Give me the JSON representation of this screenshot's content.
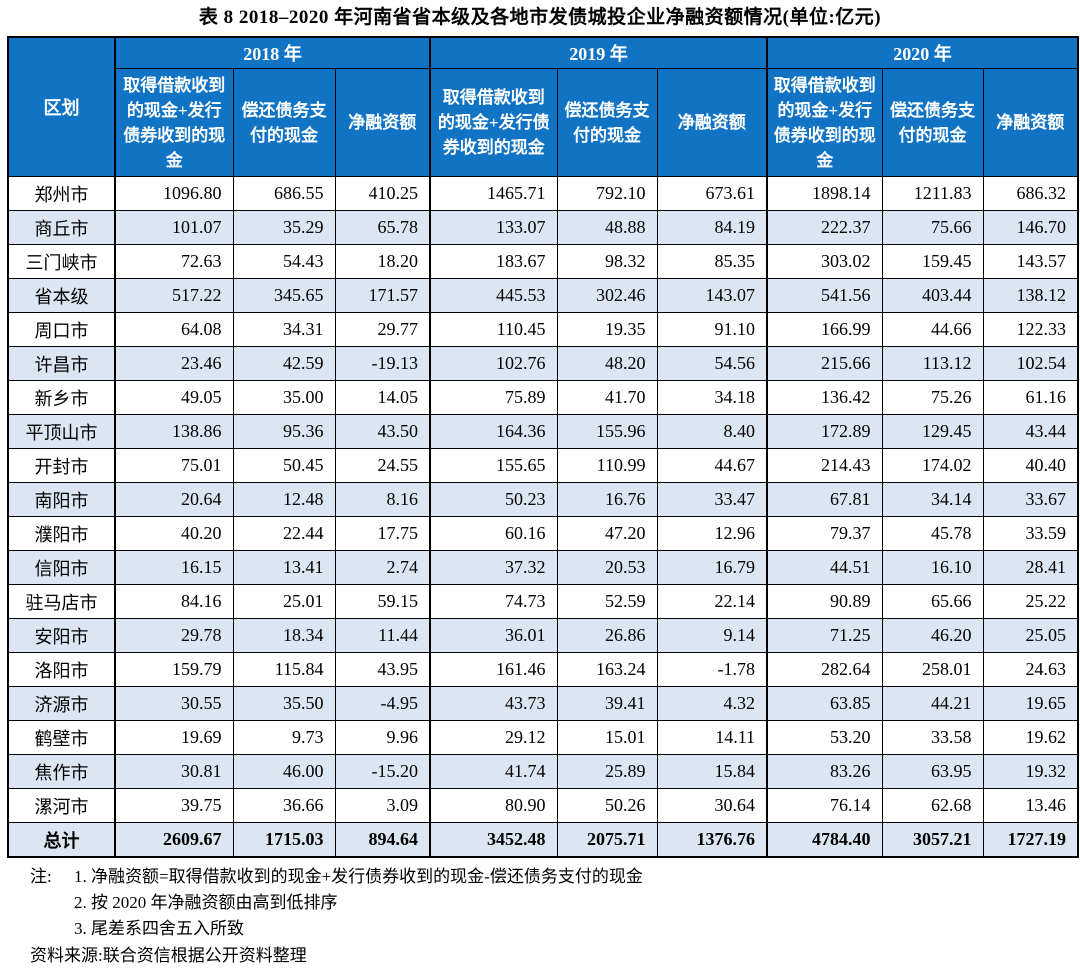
{
  "page": {
    "title": "表 8  2018–2020 年河南省省本级及各地市发债城投企业净融资额情况(单位:亿元)"
  },
  "colors": {
    "header_blue": "#1173C4",
    "row_alt_blue": "#DCE6F2",
    "border": "#000000",
    "header_text": "#FFFFFF"
  },
  "table": {
    "region_header": "区划",
    "year_groups": [
      {
        "year": "2018 年",
        "columns": [
          "取得借款收到的现金+发行债券收到的现金",
          "偿还债务支付的现金",
          "净融资额"
        ]
      },
      {
        "year": "2019 年",
        "columns": [
          "取得借款收到的现金+发行债券收到的现金",
          "偿还债务支付的现金",
          "净融资额"
        ]
      },
      {
        "year": "2020 年",
        "columns": [
          "取得借款收到的现金+发行债券收到的现金",
          "偿还债务支付的现金",
          "净融资额"
        ]
      }
    ],
    "rows": [
      {
        "region": "郑州市",
        "values": [
          "1096.80",
          "686.55",
          "410.25",
          "1465.71",
          "792.10",
          "673.61",
          "1898.14",
          "1211.83",
          "686.32"
        ]
      },
      {
        "region": "商丘市",
        "values": [
          "101.07",
          "35.29",
          "65.78",
          "133.07",
          "48.88",
          "84.19",
          "222.37",
          "75.66",
          "146.70"
        ]
      },
      {
        "region": "三门峡市",
        "values": [
          "72.63",
          "54.43",
          "18.20",
          "183.67",
          "98.32",
          "85.35",
          "303.02",
          "159.45",
          "143.57"
        ]
      },
      {
        "region": "省本级",
        "values": [
          "517.22",
          "345.65",
          "171.57",
          "445.53",
          "302.46",
          "143.07",
          "541.56",
          "403.44",
          "138.12"
        ]
      },
      {
        "region": "周口市",
        "values": [
          "64.08",
          "34.31",
          "29.77",
          "110.45",
          "19.35",
          "91.10",
          "166.99",
          "44.66",
          "122.33"
        ]
      },
      {
        "region": "许昌市",
        "values": [
          "23.46",
          "42.59",
          "-19.13",
          "102.76",
          "48.20",
          "54.56",
          "215.66",
          "113.12",
          "102.54"
        ]
      },
      {
        "region": "新乡市",
        "values": [
          "49.05",
          "35.00",
          "14.05",
          "75.89",
          "41.70",
          "34.18",
          "136.42",
          "75.26",
          "61.16"
        ]
      },
      {
        "region": "平顶山市",
        "values": [
          "138.86",
          "95.36",
          "43.50",
          "164.36",
          "155.96",
          "8.40",
          "172.89",
          "129.45",
          "43.44"
        ]
      },
      {
        "region": "开封市",
        "values": [
          "75.01",
          "50.45",
          "24.55",
          "155.65",
          "110.99",
          "44.67",
          "214.43",
          "174.02",
          "40.40"
        ]
      },
      {
        "region": "南阳市",
        "values": [
          "20.64",
          "12.48",
          "8.16",
          "50.23",
          "16.76",
          "33.47",
          "67.81",
          "34.14",
          "33.67"
        ]
      },
      {
        "region": "濮阳市",
        "values": [
          "40.20",
          "22.44",
          "17.75",
          "60.16",
          "47.20",
          "12.96",
          "79.37",
          "45.78",
          "33.59"
        ]
      },
      {
        "region": "信阳市",
        "values": [
          "16.15",
          "13.41",
          "2.74",
          "37.32",
          "20.53",
          "16.79",
          "44.51",
          "16.10",
          "28.41"
        ]
      },
      {
        "region": "驻马店市",
        "values": [
          "84.16",
          "25.01",
          "59.15",
          "74.73",
          "52.59",
          "22.14",
          "90.89",
          "65.66",
          "25.22"
        ]
      },
      {
        "region": "安阳市",
        "values": [
          "29.78",
          "18.34",
          "11.44",
          "36.01",
          "26.86",
          "9.14",
          "71.25",
          "46.20",
          "25.05"
        ]
      },
      {
        "region": "洛阳市",
        "values": [
          "159.79",
          "115.84",
          "43.95",
          "161.46",
          "163.24",
          "-1.78",
          "282.64",
          "258.01",
          "24.63"
        ]
      },
      {
        "region": "济源市",
        "values": [
          "30.55",
          "35.50",
          "-4.95",
          "43.73",
          "39.41",
          "4.32",
          "63.85",
          "44.21",
          "19.65"
        ]
      },
      {
        "region": "鹤壁市",
        "values": [
          "19.69",
          "9.73",
          "9.96",
          "29.12",
          "15.01",
          "14.11",
          "53.20",
          "33.58",
          "19.62"
        ]
      },
      {
        "region": "焦作市",
        "values": [
          "30.81",
          "46.00",
          "-15.20",
          "41.74",
          "25.89",
          "15.84",
          "83.26",
          "63.95",
          "19.32"
        ]
      },
      {
        "region": "漯河市",
        "values": [
          "39.75",
          "36.66",
          "3.09",
          "80.90",
          "50.26",
          "30.64",
          "76.14",
          "62.68",
          "13.46"
        ]
      }
    ],
    "total": {
      "region": "总计",
      "values": [
        "2609.67",
        "1715.03",
        "894.64",
        "3452.48",
        "2075.71",
        "1376.76",
        "4784.40",
        "3057.21",
        "1727.19"
      ]
    }
  },
  "notes": {
    "label": "注:",
    "items": [
      "1. 净融资额=取得借款收到的现金+发行债券收到的现金-偿还债务支付的现金",
      "2. 按 2020 年净融资额由高到低排序",
      "3. 尾差系四舍五入所致"
    ],
    "source": "资料来源:联合资信根据公开资料整理"
  }
}
